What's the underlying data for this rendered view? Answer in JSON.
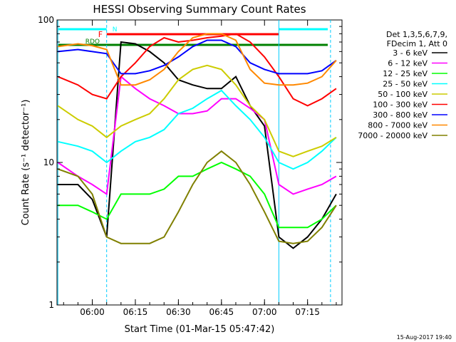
{
  "chart_data": {
    "type": "line",
    "title": "HESSI Observing Summary Count Rates",
    "xlabel": "Start Time (01-Mar-15 05:47:42)",
    "ylabel": "Count Rate (s⁻¹ detector⁻¹)",
    "yscale": "log",
    "ylim": [
      1,
      100
    ],
    "xlim_minutes_label": "05:47:42 to 07:27",
    "x_ticks": [
      "06:00",
      "06:15",
      "06:30",
      "06:45",
      "07:00",
      "07:15"
    ],
    "y_ticks": [
      "1",
      "10",
      "100"
    ],
    "legend_header": [
      "Det 1,3,5,6,7,9,",
      "FDecim 1, Att 0"
    ],
    "series": [
      {
        "name": "3 - 6 keV",
        "color": "#000000",
        "x": [
          "05:48",
          "05:55",
          "06:00",
          "06:05",
          "06:10",
          "06:15",
          "06:20",
          "06:25",
          "06:30",
          "06:35",
          "06:40",
          "06:45",
          "06:50",
          "06:55",
          "07:00",
          "07:05",
          "07:10",
          "07:15",
          "07:20",
          "07:25"
        ],
        "values": [
          7,
          7,
          5.5,
          3,
          70,
          68,
          60,
          50,
          38,
          35,
          33,
          33,
          40,
          25,
          18,
          3,
          2.5,
          3,
          4,
          6
        ]
      },
      {
        "name": "6 - 12 keV",
        "color": "#ff00ff",
        "x": [
          "05:48",
          "05:55",
          "06:00",
          "06:05",
          "06:10",
          "06:15",
          "06:20",
          "06:25",
          "06:30",
          "06:35",
          "06:40",
          "06:45",
          "06:50",
          "06:55",
          "07:00",
          "07:05",
          "07:10",
          "07:15",
          "07:20",
          "07:25"
        ],
        "values": [
          10,
          8,
          7,
          6,
          40,
          33,
          28,
          25,
          22,
          22,
          23,
          28,
          28,
          24,
          20,
          7,
          6,
          6.5,
          7,
          8
        ]
      },
      {
        "name": "12 - 25 keV",
        "color": "#00ff00",
        "x": [
          "05:48",
          "05:55",
          "06:00",
          "06:05",
          "06:10",
          "06:15",
          "06:20",
          "06:25",
          "06:30",
          "06:35",
          "06:40",
          "06:45",
          "06:50",
          "06:55",
          "07:00",
          "07:05",
          "07:10",
          "07:15",
          "07:20",
          "07:25"
        ],
        "values": [
          5,
          5,
          4.5,
          4,
          6,
          6,
          6,
          6.5,
          8,
          8,
          9,
          10,
          9,
          8,
          6,
          3.5,
          3.5,
          3.5,
          4,
          5
        ]
      },
      {
        "name": "25 - 50 keV",
        "color": "#00ffff",
        "x": [
          "05:48",
          "05:55",
          "06:00",
          "06:05",
          "06:10",
          "06:15",
          "06:20",
          "06:25",
          "06:30",
          "06:35",
          "06:40",
          "06:45",
          "06:50",
          "06:55",
          "07:00",
          "07:05",
          "07:10",
          "07:15",
          "07:20",
          "07:25"
        ],
        "values": [
          14,
          13,
          12,
          10,
          12,
          14,
          15,
          17,
          22,
          24,
          28,
          32,
          25,
          20,
          15,
          10,
          9,
          10,
          12,
          15
        ]
      },
      {
        "name": "50 - 100 keV",
        "color": "#cccc00",
        "x": [
          "05:48",
          "05:55",
          "06:00",
          "06:05",
          "06:10",
          "06:15",
          "06:20",
          "06:25",
          "06:30",
          "06:35",
          "06:40",
          "06:45",
          "06:50",
          "06:55",
          "07:00",
          "07:05",
          "07:10",
          "07:15",
          "07:20",
          "07:25"
        ],
        "values": [
          25,
          20,
          18,
          15,
          18,
          20,
          22,
          28,
          38,
          45,
          48,
          45,
          35,
          25,
          20,
          12,
          11,
          12,
          13,
          15
        ]
      },
      {
        "name": "100 - 300 keV",
        "color": "#ff0000",
        "x": [
          "05:48",
          "05:55",
          "06:00",
          "06:05",
          "06:10",
          "06:15",
          "06:20",
          "06:25",
          "06:30",
          "06:35",
          "06:40",
          "06:45",
          "06:50",
          "06:55",
          "07:00",
          "07:05",
          "07:10",
          "07:15",
          "07:20",
          "07:25"
        ],
        "values": [
          40,
          35,
          30,
          28,
          40,
          50,
          65,
          75,
          70,
          72,
          75,
          77,
          80,
          70,
          55,
          40,
          28,
          25,
          28,
          33
        ]
      },
      {
        "name": "300 - 800 keV",
        "color": "#0000ff",
        "x": [
          "05:48",
          "05:55",
          "06:00",
          "06:05",
          "06:10",
          "06:15",
          "06:20",
          "06:25",
          "06:30",
          "06:35",
          "06:40",
          "06:45",
          "06:50",
          "06:55",
          "07:00",
          "07:05",
          "07:10",
          "07:15",
          "07:20",
          "07:25"
        ],
        "values": [
          60,
          62,
          60,
          58,
          42,
          42,
          44,
          48,
          55,
          65,
          72,
          72,
          65,
          50,
          45,
          42,
          42,
          42,
          44,
          52
        ]
      },
      {
        "name": "800 - 7000 keV",
        "color": "#ff8800",
        "x": [
          "05:48",
          "05:55",
          "06:00",
          "06:05",
          "06:10",
          "06:15",
          "06:20",
          "06:25",
          "06:30",
          "06:35",
          "06:40",
          "06:45",
          "06:50",
          "06:55",
          "07:00",
          "07:05",
          "07:10",
          "07:15",
          "07:20",
          "07:25"
        ],
        "values": [
          65,
          68,
          66,
          62,
          35,
          35,
          38,
          45,
          60,
          75,
          80,
          80,
          72,
          45,
          36,
          35,
          35,
          36,
          40,
          52
        ]
      },
      {
        "name": "7000 - 20000 keV",
        "color": "#808000",
        "x": [
          "05:48",
          "05:55",
          "06:00",
          "06:05",
          "06:10",
          "06:15",
          "06:20",
          "06:25",
          "06:30",
          "06:35",
          "06:40",
          "06:45",
          "06:50",
          "06:55",
          "07:00",
          "07:05",
          "07:10",
          "07:15",
          "07:20",
          "07:25"
        ],
        "values": [
          9,
          8,
          6,
          3,
          2.7,
          2.7,
          2.7,
          3,
          4.5,
          7,
          10,
          12,
          10,
          7,
          4.5,
          2.8,
          2.7,
          2.8,
          3.5,
          5
        ]
      }
    ],
    "flags": [
      {
        "label": "N",
        "color": "#00ffff"
      },
      {
        "label": "F",
        "color": "#ff0000"
      },
      {
        "label": "RDO",
        "color": "#008000"
      }
    ]
  },
  "footer": "15-Aug-2017 19:40"
}
